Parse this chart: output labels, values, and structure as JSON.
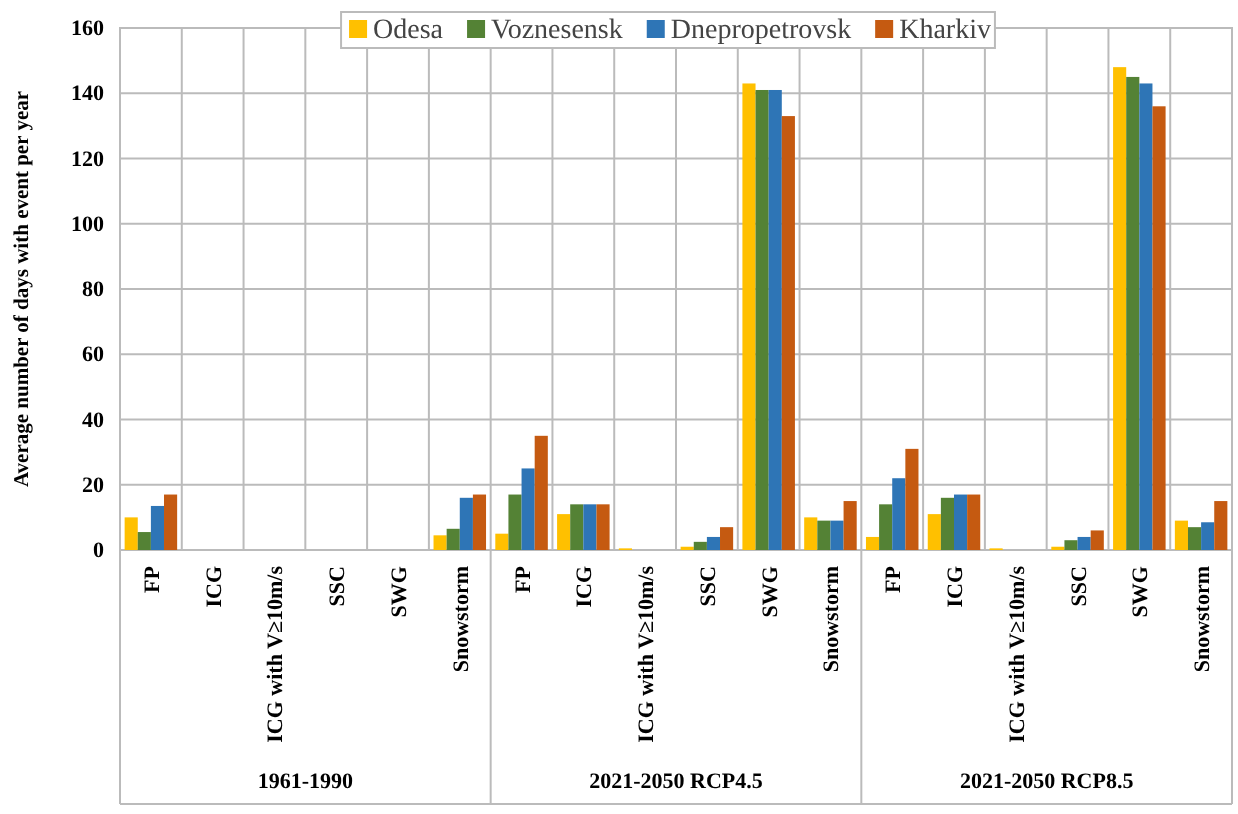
{
  "chart_data": {
    "type": "bar",
    "ylabel": "Average number of days with event per year",
    "categories": [
      "FP",
      "ICG",
      "ICG with V≥10m/s",
      "SSC",
      "SWG",
      "Snowstorm",
      "FP",
      "ICG",
      "ICG with V≥10m/s",
      "SSC",
      "SWG",
      "Snowstorm",
      "FP",
      "ICG",
      "ICG with V≥10m/s",
      "SSC",
      "SWG",
      "Snowstorm"
    ],
    "series": [
      {
        "name": "Odesa",
        "color": "#ffc000",
        "values": [
          10,
          0,
          0,
          0,
          0,
          4.5,
          5,
          11,
          0.5,
          1,
          143,
          10,
          4,
          11,
          0.5,
          1,
          148,
          9
        ]
      },
      {
        "name": "Voznesensk",
        "color": "#548235",
        "values": [
          5.5,
          0,
          0,
          0,
          0,
          6.5,
          17,
          14,
          0,
          2.5,
          141,
          9,
          14,
          16,
          0,
          3,
          145,
          7
        ]
      },
      {
        "name": "Dnepropetrovsk",
        "color": "#2e75b6",
        "values": [
          13.5,
          0,
          0,
          0,
          0,
          16,
          25,
          14,
          0,
          4,
          141,
          9,
          22,
          17,
          0,
          4,
          143,
          8.5
        ]
      },
      {
        "name": "Kharkiv",
        "color": "#c55a11",
        "values": [
          17,
          0,
          0,
          0,
          0,
          17,
          35,
          14,
          0,
          7,
          133,
          15,
          31,
          17,
          0,
          6,
          136,
          15
        ]
      }
    ],
    "annotations": [
      "1961-1990",
      "2021-2050 RCP4.5",
      "2021-2050 RCP8.5"
    ],
    "ylim": [
      0,
      160
    ],
    "yticks": [
      0,
      20,
      40,
      60,
      80,
      100,
      120,
      140,
      160
    ],
    "grid": true,
    "legend": "top"
  }
}
